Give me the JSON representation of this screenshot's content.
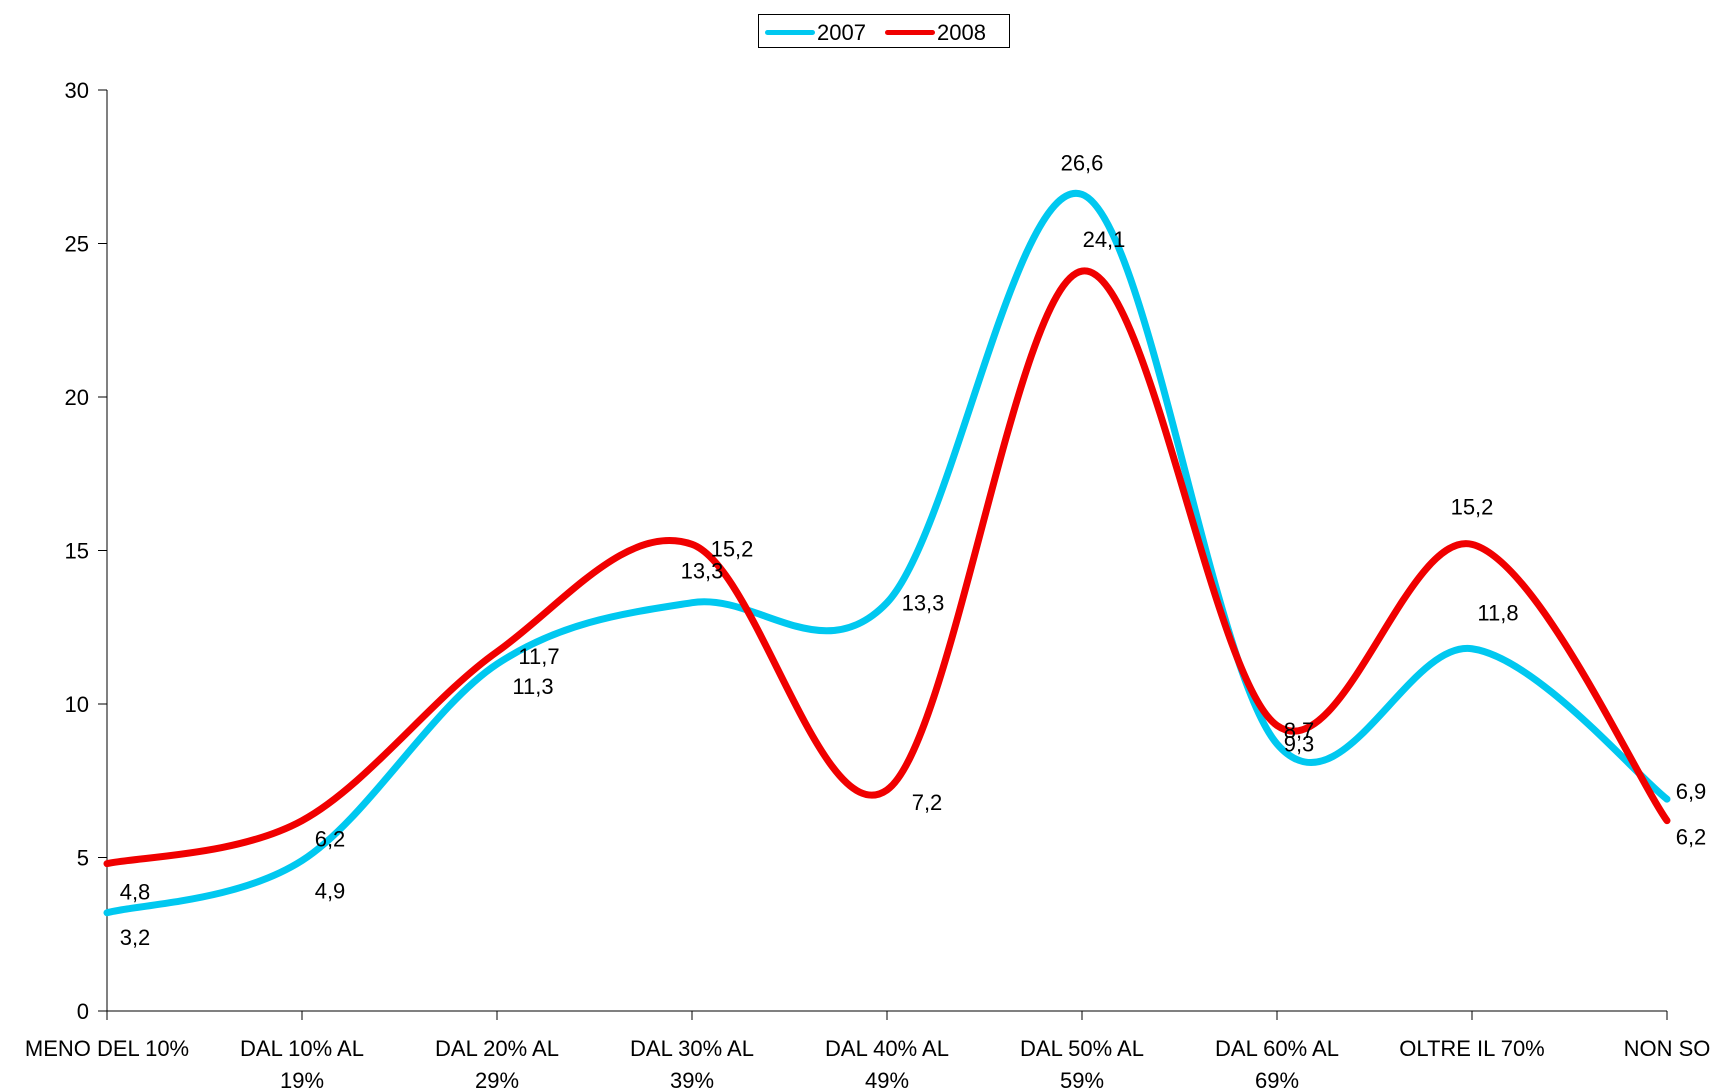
{
  "chart_data": {
    "type": "line",
    "categories": [
      [
        "MENO DEL 10%"
      ],
      [
        "DAL 10% AL",
        "19%"
      ],
      [
        "DAL 20% AL",
        "29%"
      ],
      [
        "DAL 30% AL",
        "39%"
      ],
      [
        "DAL 40% AL",
        "49%"
      ],
      [
        "DAL 50% AL",
        "59%"
      ],
      [
        "DAL 60% AL",
        "69%"
      ],
      [
        "OLTRE IL 70%"
      ],
      [
        "NON SO"
      ]
    ],
    "series": [
      {
        "name": "2007",
        "color": "#00C8F0",
        "values": [
          3.2,
          4.9,
          11.3,
          13.3,
          13.3,
          26.6,
          8.7,
          11.8,
          6.9
        ],
        "labels": [
          "3,2",
          "4,9",
          "11,3",
          "13,3",
          "13,3",
          "26,6",
          "8,7",
          "11,8",
          "6,9"
        ]
      },
      {
        "name": "2008",
        "color": "#F00000",
        "values": [
          4.8,
          6.2,
          11.7,
          15.2,
          7.2,
          24.1,
          9.3,
          15.2,
          6.2
        ],
        "labels": [
          "4,8",
          "6,2",
          "11,7",
          "15,2",
          "7,2",
          "24,1",
          "9,3",
          "15,2",
          "6,2"
        ]
      }
    ],
    "yticks": [
      "0",
      "5",
      "10",
      "15",
      "20",
      "25",
      "30"
    ],
    "ylim": [
      0,
      30
    ],
    "smooth": true,
    "grid": false,
    "legend_position": "top-center"
  }
}
